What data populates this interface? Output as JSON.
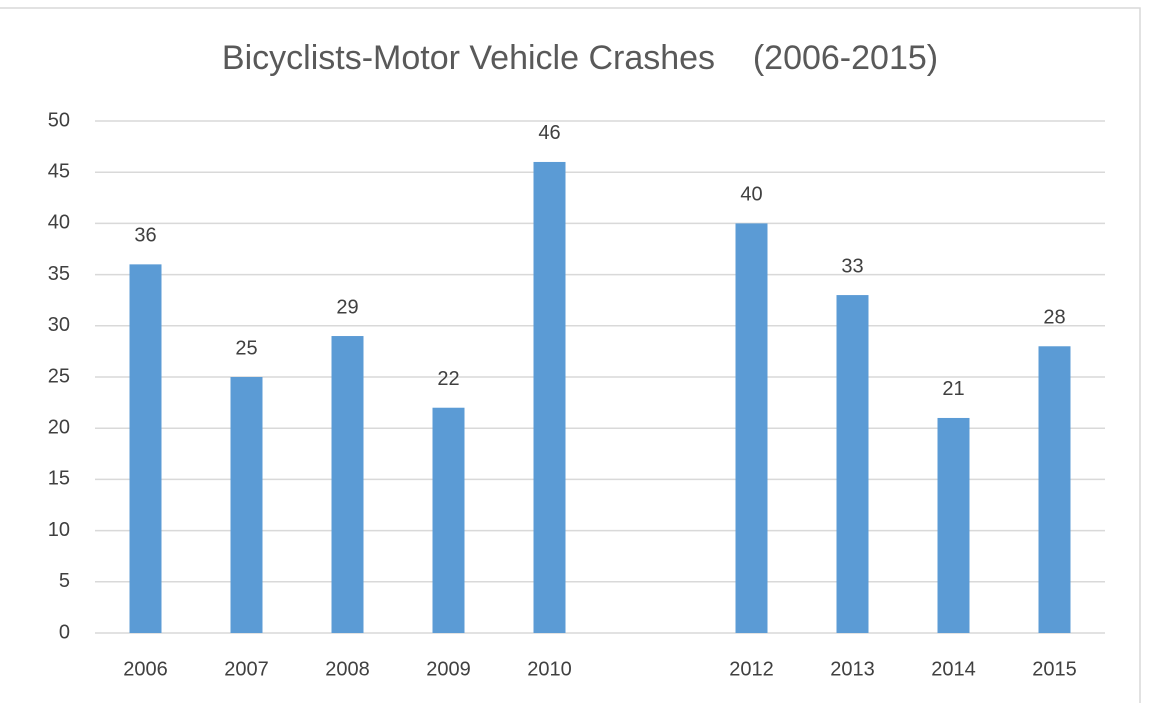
{
  "chart_data": {
    "type": "bar",
    "title": "Bicyclists-Motor Vehicle Crashes    (2006-2015)",
    "categories": [
      "2006",
      "2007",
      "2008",
      "2009",
      "2010",
      null,
      "2012",
      "2013",
      "2014",
      "2015"
    ],
    "values": [
      36,
      25,
      29,
      22,
      46,
      null,
      40,
      33,
      21,
      28
    ],
    "color": "#5b9bd5",
    "ylim": [
      0,
      50
    ],
    "yticks": [
      0,
      5,
      10,
      15,
      20,
      25,
      30,
      35,
      40,
      45,
      50
    ],
    "grid": true
  }
}
